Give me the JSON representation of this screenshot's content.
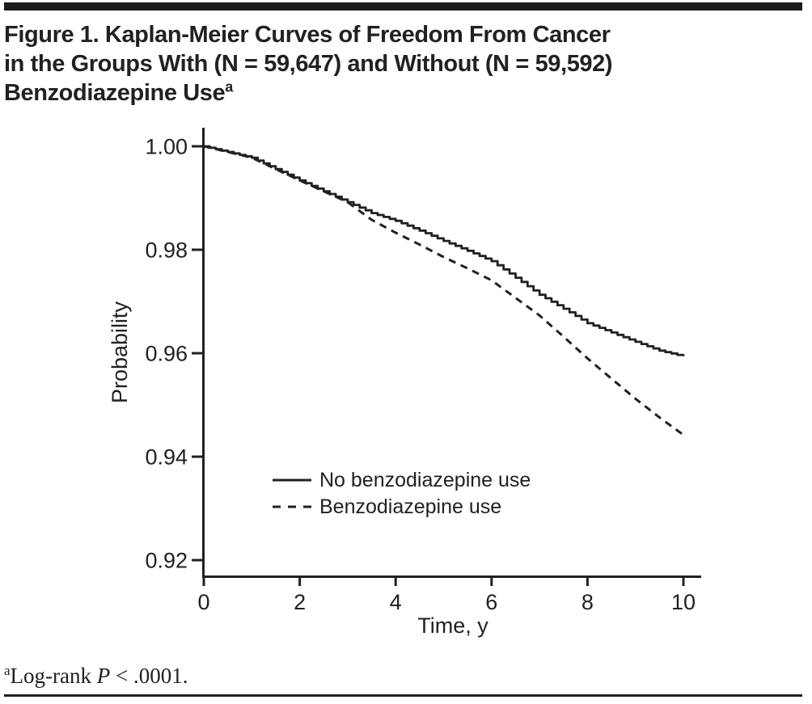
{
  "figure": {
    "title_line1": "Figure 1. Kaplan-Meier Curves of Freedom From Cancer",
    "title_line2": "in the Groups With (N = 59,647) and Without (N = 59,592)",
    "title_line3": "Benzodiazepine Use",
    "title_superscript": "a",
    "footnote": {
      "superscript": "a",
      "prefix": "Log-rank ",
      "stat": "P",
      "suffix": " < .0001."
    }
  },
  "colors": {
    "ink": "#242021"
  },
  "chart_data": {
    "type": "line",
    "title": "",
    "xlabel": "Time, y",
    "ylabel": "Probability",
    "xlim": [
      0,
      10
    ],
    "ylim": [
      0.92,
      1.0
    ],
    "xticks": [
      0,
      2,
      4,
      6,
      8,
      10
    ],
    "yticks": [
      1.0,
      0.98,
      0.96,
      0.94,
      0.92
    ],
    "grid": false,
    "legend_position": "inside-lower-left",
    "x": [
      0,
      0.5,
      1,
      1.5,
      2,
      2.5,
      3,
      3.5,
      4,
      4.5,
      5,
      5.5,
      6,
      6.5,
      7,
      7.5,
      8,
      8.5,
      9,
      9.5,
      10
    ],
    "series": [
      {
        "name": "No benzodiazepine use",
        "style": "solid",
        "values": [
          1.0,
          0.9989,
          0.9978,
          0.9956,
          0.9934,
          0.9913,
          0.9892,
          0.9871,
          0.9856,
          0.9837,
          0.9817,
          0.9798,
          0.9778,
          0.9746,
          0.9713,
          0.9686,
          0.9658,
          0.964,
          0.9622,
          0.9605,
          0.9594
        ]
      },
      {
        "name": "Benzodiazepine use",
        "style": "dashed",
        "values": [
          1.0,
          0.9989,
          0.9978,
          0.9956,
          0.9934,
          0.9913,
          0.9892,
          0.9858,
          0.9833,
          0.981,
          0.9786,
          0.9764,
          0.9741,
          0.9707,
          0.9673,
          0.9632,
          0.959,
          0.9551,
          0.9512,
          0.9476,
          0.9442
        ]
      }
    ]
  }
}
